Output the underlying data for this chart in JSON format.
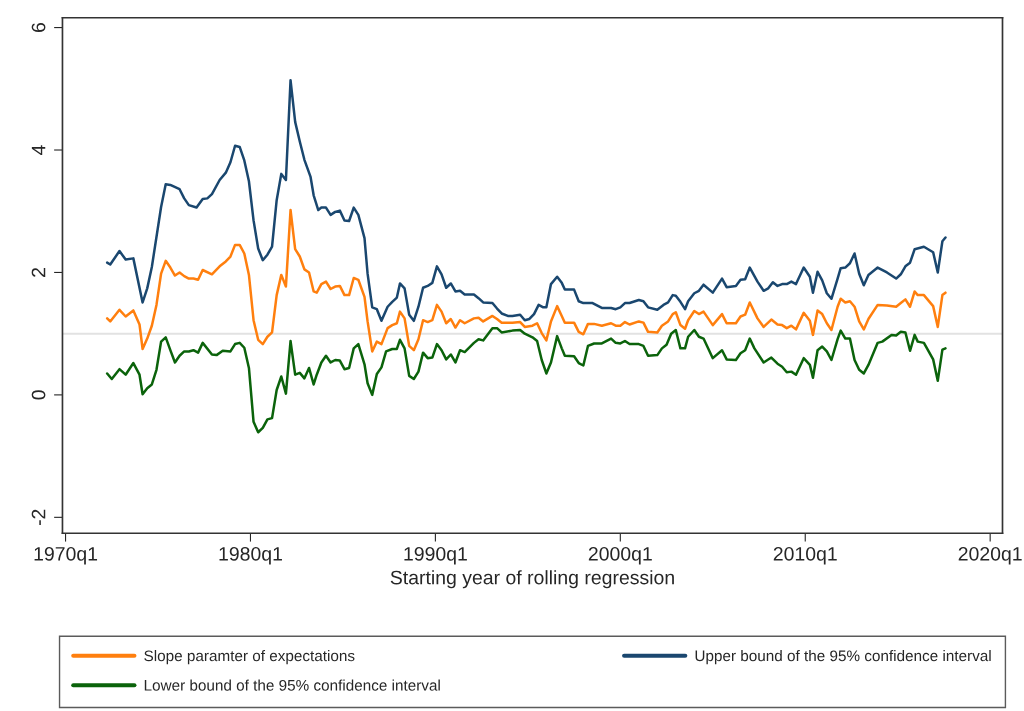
{
  "chart_data": {
    "type": "line",
    "xlabel": "Starting year of rolling regression",
    "xlim": [
      "1969-11",
      "2020-09"
    ],
    "ylim": [
      -2.26,
      6.16
    ],
    "xticks": [
      {
        "value": "1970-01",
        "label": "1970q1"
      },
      {
        "value": "1980-01",
        "label": "1980q1"
      },
      {
        "value": "1990-01",
        "label": "1990q1"
      },
      {
        "value": "2000-01",
        "label": "2000q1"
      },
      {
        "value": "2010-01",
        "label": "2010q1"
      },
      {
        "value": "2020-01",
        "label": "2020q1"
      }
    ],
    "yticks": [
      -2,
      0,
      2,
      4,
      6
    ],
    "grid": false,
    "legend": "bottom",
    "marker": "none",
    "line_style": "solid",
    "ref_lines": [
      {
        "axis": "y",
        "value": 1,
        "color": "#e2e2e2"
      }
    ],
    "series": [
      {
        "name": "Slope paramter of expectations",
        "color": "#ff7f0e",
        "x": [
          "1972-04",
          "1972-06",
          "1972-12",
          "1973-04",
          "1973-09",
          "1974-01",
          "1974-03",
          "1974-06",
          "1974-09",
          "1974-12",
          "1975-03",
          "1975-06",
          "1975-09",
          "1975-12",
          "1976-03",
          "1976-06",
          "1976-09",
          "1976-12",
          "1977-03",
          "1977-06",
          "1977-12",
          "1978-05",
          "1978-09",
          "1978-12",
          "1979-03",
          "1979-06",
          "1979-09",
          "1979-12",
          "1980-03",
          "1980-06",
          "1980-09",
          "1980-12",
          "1981-03",
          "1981-06",
          "1981-09",
          "1981-12",
          "1982-03",
          "1982-06",
          "1982-09",
          "1982-12",
          "1983-03",
          "1983-06",
          "1983-08",
          "1983-11",
          "1984-02",
          "1984-05",
          "1984-08",
          "1984-11",
          "1985-02",
          "1985-05",
          "1985-08",
          "1985-11",
          "1986-03",
          "1986-05",
          "1986-08",
          "1986-11",
          "1987-02",
          "1987-06",
          "1987-09",
          "1987-12",
          "1988-02",
          "1988-05",
          "1988-08",
          "1988-11",
          "1989-02",
          "1989-05",
          "1989-08",
          "1989-11",
          "1990-02",
          "1990-05",
          "1990-08",
          "1990-11",
          "1991-02",
          "1991-05",
          "1991-08",
          "1992-02",
          "1992-05",
          "1992-08",
          "1993-02",
          "1993-05",
          "1993-08",
          "1994-03",
          "1994-08",
          "1994-11",
          "1995-04",
          "1995-07",
          "1995-10",
          "1996-01",
          "1996-04",
          "1996-08",
          "1996-11",
          "1997-01",
          "1997-07",
          "1997-10",
          "1998-01",
          "1998-04",
          "1998-08",
          "1999-01",
          "1999-07",
          "1999-10",
          "2000-01",
          "2000-04",
          "2000-07",
          "2001-01",
          "2001-04",
          "2001-07",
          "2002-01",
          "2002-04",
          "2002-08",
          "2002-11",
          "2003-01",
          "2003-04",
          "2003-07",
          "2003-09",
          "2004-01",
          "2004-04",
          "2004-07",
          "2005-01",
          "2005-07",
          "2005-10",
          "2006-04",
          "2006-07",
          "2006-10",
          "2007-01",
          "2007-06",
          "2007-10",
          "2008-03",
          "2008-07",
          "2008-10",
          "2009-01",
          "2009-04",
          "2009-07",
          "2009-12",
          "2010-04",
          "2010-06",
          "2010-09",
          "2010-12",
          "2011-03",
          "2011-06",
          "2011-10",
          "2011-12",
          "2012-03",
          "2012-06",
          "2012-09",
          "2012-12",
          "2013-03",
          "2013-06",
          "2013-12",
          "2014-06",
          "2014-12",
          "2015-03",
          "2015-06",
          "2015-09",
          "2015-12",
          "2016-02",
          "2016-06",
          "2016-12",
          "2017-03",
          "2017-06",
          "2017-08"
        ],
        "values": [
          1.25,
          1.2,
          1.39,
          1.28,
          1.38,
          1.15,
          0.75,
          0.92,
          1.13,
          1.47,
          1.98,
          2.19,
          2.08,
          1.95,
          2.0,
          1.94,
          1.9,
          1.9,
          1.88,
          2.04,
          1.97,
          2.1,
          2.18,
          2.26,
          2.45,
          2.45,
          2.31,
          1.96,
          1.22,
          0.9,
          0.83,
          0.95,
          1.02,
          1.63,
          1.96,
          1.77,
          3.02,
          2.38,
          2.26,
          2.05,
          2.0,
          1.69,
          1.67,
          1.81,
          1.85,
          1.73,
          1.77,
          1.78,
          1.63,
          1.63,
          1.91,
          1.88,
          1.6,
          1.2,
          0.71,
          0.87,
          0.83,
          1.09,
          1.14,
          1.17,
          1.36,
          1.25,
          0.8,
          0.73,
          0.91,
          1.22,
          1.19,
          1.22,
          1.47,
          1.36,
          1.17,
          1.24,
          1.1,
          1.22,
          1.17,
          1.25,
          1.26,
          1.2,
          1.29,
          1.24,
          1.18,
          1.18,
          1.19,
          1.11,
          1.13,
          1.17,
          1.01,
          0.89,
          1.2,
          1.45,
          1.29,
          1.18,
          1.18,
          1.03,
          0.99,
          1.16,
          1.16,
          1.13,
          1.17,
          1.13,
          1.13,
          1.19,
          1.15,
          1.2,
          1.18,
          1.03,
          1.02,
          1.13,
          1.2,
          1.32,
          1.35,
          1.14,
          1.08,
          1.22,
          1.37,
          1.32,
          1.36,
          1.14,
          1.32,
          1.17,
          1.17,
          1.28,
          1.31,
          1.51,
          1.25,
          1.11,
          1.23,
          1.15,
          1.14,
          1.09,
          1.13,
          1.07,
          1.34,
          1.21,
          0.98,
          1.38,
          1.32,
          1.17,
          1.06,
          1.44,
          1.57,
          1.51,
          1.53,
          1.44,
          1.2,
          1.07,
          1.24,
          1.47,
          1.46,
          1.44,
          1.5,
          1.56,
          1.44,
          1.69,
          1.63,
          1.63,
          1.45,
          1.11,
          1.63,
          1.67
        ]
      },
      {
        "name": "Upper bound of the 95% confidence interval",
        "color": "#1a476f",
        "x": [
          "1972-04",
          "1972-06",
          "1972-12",
          "1973-04",
          "1973-09",
          "1974-03",
          "1974-06",
          "1974-09",
          "1975-03",
          "1975-06",
          "1975-09",
          "1976-03",
          "1976-06",
          "1976-09",
          "1977-02",
          "1977-06",
          "1977-09",
          "1977-12",
          "1978-05",
          "1978-09",
          "1978-12",
          "1979-03",
          "1979-06",
          "1979-09",
          "1979-12",
          "1980-03",
          "1980-06",
          "1980-09",
          "1980-12",
          "1981-03",
          "1981-06",
          "1981-09",
          "1981-12",
          "1982-03",
          "1982-06",
          "1982-09",
          "1982-12",
          "1983-04",
          "1983-06",
          "1983-09",
          "1983-11",
          "1984-02",
          "1984-05",
          "1984-08",
          "1984-11",
          "1985-02",
          "1985-05",
          "1985-08",
          "1985-11",
          "1986-03",
          "1986-05",
          "1986-08",
          "1986-11",
          "1987-02",
          "1987-06",
          "1987-09",
          "1987-12",
          "1988-02",
          "1988-05",
          "1988-08",
          "1988-11",
          "1989-02",
          "1989-05",
          "1989-08",
          "1989-11",
          "1990-02",
          "1990-05",
          "1990-08",
          "1990-11",
          "1991-02",
          "1991-05",
          "1991-08",
          "1992-02",
          "1992-05",
          "1992-08",
          "1993-02",
          "1993-05",
          "1993-08",
          "1993-12",
          "1994-03",
          "1994-08",
          "1994-11",
          "1995-02",
          "1995-05",
          "1995-08",
          "1995-11",
          "1996-01",
          "1996-04",
          "1996-08",
          "1996-11",
          "1997-01",
          "1997-07",
          "1997-10",
          "1998-01",
          "1998-07",
          "1999-01",
          "1999-07",
          "1999-10",
          "2000-01",
          "2000-04",
          "2000-07",
          "2001-01",
          "2001-04",
          "2001-07",
          "2002-01",
          "2002-05",
          "2002-08",
          "2002-11",
          "2003-01",
          "2003-04",
          "2003-07",
          "2003-09",
          "2004-01",
          "2004-04",
          "2004-07",
          "2005-01",
          "2005-07",
          "2005-10",
          "2006-04",
          "2006-07",
          "2006-10",
          "2007-01",
          "2007-06",
          "2007-10",
          "2008-01",
          "2008-04",
          "2008-07",
          "2008-10",
          "2009-01",
          "2009-04",
          "2009-07",
          "2009-12",
          "2010-04",
          "2010-06",
          "2010-09",
          "2010-12",
          "2011-03",
          "2011-06",
          "2011-10",
          "2011-12",
          "2012-03",
          "2012-06",
          "2012-09",
          "2012-12",
          "2013-03",
          "2013-06",
          "2013-12",
          "2014-06",
          "2014-12",
          "2015-03",
          "2015-06",
          "2015-09",
          "2015-12",
          "2016-06",
          "2016-12",
          "2017-03",
          "2017-06",
          "2017-08"
        ],
        "values": [
          2.16,
          2.13,
          2.35,
          2.21,
          2.23,
          1.51,
          1.74,
          2.09,
          3.07,
          3.44,
          3.43,
          3.36,
          3.21,
          3.1,
          3.06,
          3.2,
          3.21,
          3.28,
          3.51,
          3.63,
          3.8,
          4.07,
          4.05,
          3.83,
          3.49,
          2.85,
          2.39,
          2.2,
          2.29,
          2.42,
          3.18,
          3.61,
          3.51,
          5.14,
          4.46,
          4.14,
          3.84,
          3.56,
          3.26,
          3.02,
          3.06,
          3.06,
          2.94,
          2.99,
          3.01,
          2.85,
          2.84,
          3.06,
          2.94,
          2.56,
          1.98,
          1.43,
          1.4,
          1.21,
          1.44,
          1.52,
          1.59,
          1.82,
          1.74,
          1.31,
          1.21,
          1.44,
          1.75,
          1.78,
          1.83,
          2.1,
          1.97,
          1.75,
          1.82,
          1.69,
          1.7,
          1.64,
          1.64,
          1.58,
          1.51,
          1.5,
          1.41,
          1.33,
          1.29,
          1.29,
          1.31,
          1.22,
          1.24,
          1.32,
          1.47,
          1.43,
          1.43,
          1.81,
          1.93,
          1.83,
          1.72,
          1.72,
          1.53,
          1.5,
          1.5,
          1.42,
          1.42,
          1.4,
          1.43,
          1.5,
          1.5,
          1.55,
          1.53,
          1.43,
          1.39,
          1.47,
          1.51,
          1.63,
          1.62,
          1.52,
          1.4,
          1.53,
          1.66,
          1.7,
          1.8,
          1.67,
          1.9,
          1.76,
          1.78,
          1.88,
          1.89,
          2.08,
          1.85,
          1.7,
          1.74,
          1.84,
          1.78,
          1.81,
          1.81,
          1.85,
          1.81,
          2.08,
          1.93,
          1.67,
          2.01,
          1.87,
          1.66,
          1.57,
          1.9,
          2.07,
          2.08,
          2.15,
          2.31,
          1.98,
          1.79,
          1.96,
          2.08,
          2.0,
          1.9,
          1.97,
          2.1,
          2.16,
          2.38,
          2.42,
          2.33,
          2.0,
          2.51,
          2.57
        ]
      },
      {
        "name": "Lower bound of the 95% confidence interval",
        "color": "#0b630b",
        "x": [
          "1972-04",
          "1972-07",
          "1972-12",
          "1973-04",
          "1973-09",
          "1974-01",
          "1974-03",
          "1974-06",
          "1974-09",
          "1974-12",
          "1975-03",
          "1975-06",
          "1975-09",
          "1975-12",
          "1976-03",
          "1976-06",
          "1976-09",
          "1976-12",
          "1977-03",
          "1977-06",
          "1977-12",
          "1978-03",
          "1978-07",
          "1978-12",
          "1979-03",
          "1979-06",
          "1979-09",
          "1979-12",
          "1980-03",
          "1980-06",
          "1980-09",
          "1980-12",
          "1981-03",
          "1981-06",
          "1981-09",
          "1981-12",
          "1982-03",
          "1982-06",
          "1982-09",
          "1982-12",
          "1983-03",
          "1983-06",
          "1983-08",
          "1983-11",
          "1984-02",
          "1984-05",
          "1984-08",
          "1984-11",
          "1985-02",
          "1985-05",
          "1985-08",
          "1985-11",
          "1986-03",
          "1986-05",
          "1986-08",
          "1986-11",
          "1987-02",
          "1987-05",
          "1987-09",
          "1987-12",
          "1988-02",
          "1988-05",
          "1988-08",
          "1988-11",
          "1989-02",
          "1989-05",
          "1989-08",
          "1989-11",
          "1990-02",
          "1990-05",
          "1990-08",
          "1990-11",
          "1991-02",
          "1991-05",
          "1991-08",
          "1992-02",
          "1992-05",
          "1992-08",
          "1993-02",
          "1993-05",
          "1993-08",
          "1994-03",
          "1994-08",
          "1994-11",
          "1995-04",
          "1995-07",
          "1995-10",
          "1996-01",
          "1996-04",
          "1996-08",
          "1996-11",
          "1997-01",
          "1997-07",
          "1997-10",
          "1998-01",
          "1998-04",
          "1998-08",
          "1999-01",
          "1999-07",
          "1999-10",
          "2000-01",
          "2000-04",
          "2000-07",
          "2001-01",
          "2001-04",
          "2001-07",
          "2002-01",
          "2002-04",
          "2002-07",
          "2002-10",
          "2003-01",
          "2003-04",
          "2003-07",
          "2003-09",
          "2004-01",
          "2004-04",
          "2004-07",
          "2005-01",
          "2005-07",
          "2005-10",
          "2006-04",
          "2006-07",
          "2006-10",
          "2007-01",
          "2007-04",
          "2007-10",
          "2008-03",
          "2008-07",
          "2008-10",
          "2009-01",
          "2009-04",
          "2009-07",
          "2009-12",
          "2010-04",
          "2010-06",
          "2010-09",
          "2010-12",
          "2011-03",
          "2011-06",
          "2011-10",
          "2011-12",
          "2012-03",
          "2012-06",
          "2012-09",
          "2012-12",
          "2013-03",
          "2013-06",
          "2013-12",
          "2014-03",
          "2014-09",
          "2014-12",
          "2015-03",
          "2015-06",
          "2015-09",
          "2015-12",
          "2016-02",
          "2016-06",
          "2016-12",
          "2017-03",
          "2017-06",
          "2017-08"
        ],
        "values": [
          0.35,
          0.26,
          0.42,
          0.33,
          0.52,
          0.33,
          0.01,
          0.11,
          0.17,
          0.41,
          0.87,
          0.94,
          0.73,
          0.53,
          0.64,
          0.71,
          0.71,
          0.73,
          0.69,
          0.85,
          0.66,
          0.65,
          0.72,
          0.71,
          0.83,
          0.85,
          0.77,
          0.44,
          -0.44,
          -0.61,
          -0.54,
          -0.4,
          -0.38,
          0.08,
          0.3,
          0.02,
          0.88,
          0.33,
          0.36,
          0.27,
          0.44,
          0.17,
          0.33,
          0.53,
          0.64,
          0.53,
          0.57,
          0.56,
          0.42,
          0.44,
          0.76,
          0.83,
          0.5,
          0.19,
          0.0,
          0.34,
          0.45,
          0.71,
          0.75,
          0.75,
          0.9,
          0.76,
          0.31,
          0.26,
          0.38,
          0.69,
          0.6,
          0.61,
          0.83,
          0.73,
          0.58,
          0.66,
          0.53,
          0.73,
          0.7,
          0.85,
          0.91,
          0.89,
          1.09,
          1.09,
          1.02,
          1.05,
          1.06,
          1.0,
          0.94,
          0.88,
          0.57,
          0.35,
          0.53,
          0.96,
          0.76,
          0.64,
          0.63,
          0.52,
          0.48,
          0.8,
          0.84,
          0.84,
          0.92,
          0.85,
          0.84,
          0.88,
          0.83,
          0.83,
          0.8,
          0.64,
          0.65,
          0.76,
          0.82,
          1.0,
          1.06,
          0.76,
          0.76,
          0.95,
          1.06,
          0.95,
          0.92,
          0.6,
          0.73,
          0.58,
          0.57,
          0.68,
          0.73,
          0.92,
          0.76,
          0.53,
          0.61,
          0.51,
          0.46,
          0.37,
          0.38,
          0.33,
          0.6,
          0.49,
          0.28,
          0.73,
          0.79,
          0.71,
          0.57,
          0.91,
          1.05,
          0.92,
          0.92,
          0.57,
          0.41,
          0.35,
          0.49,
          0.85,
          0.87,
          0.98,
          0.97,
          1.03,
          1.02,
          0.72,
          0.98,
          0.87,
          0.85,
          0.58,
          0.23,
          0.74,
          0.76
        ]
      }
    ]
  }
}
